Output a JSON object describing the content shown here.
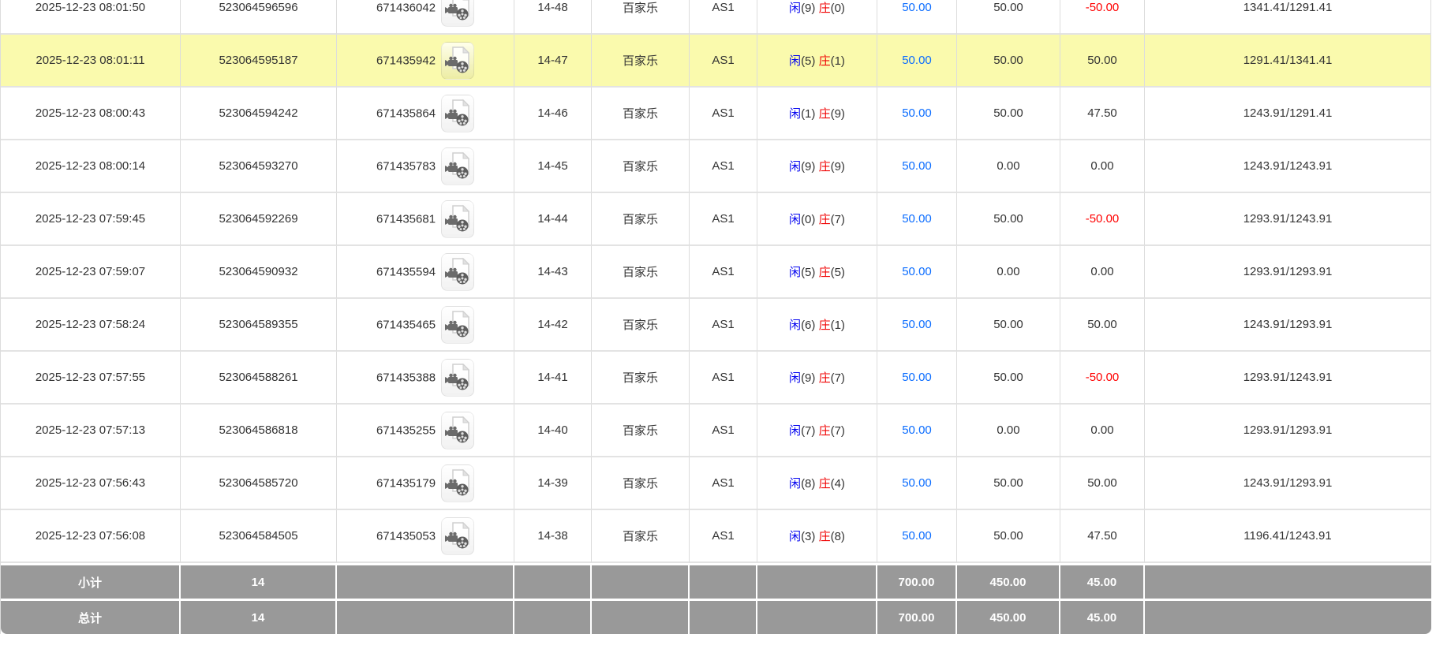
{
  "colors": {
    "highlight_row": "#fafaad",
    "player_blue": "#0404f0",
    "banker_red": "#f00505",
    "amount_link_blue": "#0a6cff",
    "loss_red": "#ff0000",
    "summary_bg": "#999999",
    "row_border": "#e3e3e3"
  },
  "table": {
    "icon": "video-record-icon",
    "rows": [
      {
        "time": "2025-12-23 08:01:50",
        "bet_id": "523064596596",
        "game_id": "671436042",
        "round": "14-48",
        "game_name": "百家乐",
        "table_name": "AS1",
        "player_label": "闲",
        "player_value": "(9)",
        "banker_label": "庄",
        "banker_value": "(0)",
        "bet_amount": "50.00",
        "valid_amount": "50.00",
        "win_loss": "-50.00",
        "balance": "1341.41/1291.41",
        "highlighted": false
      },
      {
        "time": "2025-12-23 08:01:11",
        "bet_id": "523064595187",
        "game_id": "671435942",
        "round": "14-47",
        "game_name": "百家乐",
        "table_name": "AS1",
        "player_label": "闲",
        "player_value": "(5)",
        "banker_label": "庄",
        "banker_value": "(1)",
        "bet_amount": "50.00",
        "valid_amount": "50.00",
        "win_loss": "50.00",
        "balance": "1291.41/1341.41",
        "highlighted": true
      },
      {
        "time": "2025-12-23 08:00:43",
        "bet_id": "523064594242",
        "game_id": "671435864",
        "round": "14-46",
        "game_name": "百家乐",
        "table_name": "AS1",
        "player_label": "闲",
        "player_value": "(1)",
        "banker_label": "庄",
        "banker_value": "(9)",
        "bet_amount": "50.00",
        "valid_amount": "50.00",
        "win_loss": "47.50",
        "balance": "1243.91/1291.41",
        "highlighted": false
      },
      {
        "time": "2025-12-23 08:00:14",
        "bet_id": "523064593270",
        "game_id": "671435783",
        "round": "14-45",
        "game_name": "百家乐",
        "table_name": "AS1",
        "player_label": "闲",
        "player_value": "(9)",
        "banker_label": "庄",
        "banker_value": "(9)",
        "bet_amount": "50.00",
        "valid_amount": "0.00",
        "win_loss": "0.00",
        "balance": "1243.91/1243.91",
        "highlighted": false
      },
      {
        "time": "2025-12-23 07:59:45",
        "bet_id": "523064592269",
        "game_id": "671435681",
        "round": "14-44",
        "game_name": "百家乐",
        "table_name": "AS1",
        "player_label": "闲",
        "player_value": "(0)",
        "banker_label": "庄",
        "banker_value": "(7)",
        "bet_amount": "50.00",
        "valid_amount": "50.00",
        "win_loss": "-50.00",
        "balance": "1293.91/1243.91",
        "highlighted": false
      },
      {
        "time": "2025-12-23 07:59:07",
        "bet_id": "523064590932",
        "game_id": "671435594",
        "round": "14-43",
        "game_name": "百家乐",
        "table_name": "AS1",
        "player_label": "闲",
        "player_value": "(5)",
        "banker_label": "庄",
        "banker_value": "(5)",
        "bet_amount": "50.00",
        "valid_amount": "0.00",
        "win_loss": "0.00",
        "balance": "1293.91/1293.91",
        "highlighted": false
      },
      {
        "time": "2025-12-23 07:58:24",
        "bet_id": "523064589355",
        "game_id": "671435465",
        "round": "14-42",
        "game_name": "百家乐",
        "table_name": "AS1",
        "player_label": "闲",
        "player_value": "(6)",
        "banker_label": "庄",
        "banker_value": "(1)",
        "bet_amount": "50.00",
        "valid_amount": "50.00",
        "win_loss": "50.00",
        "balance": "1243.91/1293.91",
        "highlighted": false
      },
      {
        "time": "2025-12-23 07:57:55",
        "bet_id": "523064588261",
        "game_id": "671435388",
        "round": "14-41",
        "game_name": "百家乐",
        "table_name": "AS1",
        "player_label": "闲",
        "player_value": "(9)",
        "banker_label": "庄",
        "banker_value": "(7)",
        "bet_amount": "50.00",
        "valid_amount": "50.00",
        "win_loss": "-50.00",
        "balance": "1293.91/1243.91",
        "highlighted": false
      },
      {
        "time": "2025-12-23 07:57:13",
        "bet_id": "523064586818",
        "game_id": "671435255",
        "round": "14-40",
        "game_name": "百家乐",
        "table_name": "AS1",
        "player_label": "闲",
        "player_value": "(7)",
        "banker_label": "庄",
        "banker_value": "(7)",
        "bet_amount": "50.00",
        "valid_amount": "0.00",
        "win_loss": "0.00",
        "balance": "1293.91/1293.91",
        "highlighted": false
      },
      {
        "time": "2025-12-23 07:56:43",
        "bet_id": "523064585720",
        "game_id": "671435179",
        "round": "14-39",
        "game_name": "百家乐",
        "table_name": "AS1",
        "player_label": "闲",
        "player_value": "(8)",
        "banker_label": "庄",
        "banker_value": "(4)",
        "bet_amount": "50.00",
        "valid_amount": "50.00",
        "win_loss": "50.00",
        "balance": "1243.91/1293.91",
        "highlighted": false
      },
      {
        "time": "2025-12-23 07:56:08",
        "bet_id": "523064584505",
        "game_id": "671435053",
        "round": "14-38",
        "game_name": "百家乐",
        "table_name": "AS1",
        "player_label": "闲",
        "player_value": "(3)",
        "banker_label": "庄",
        "banker_value": "(8)",
        "bet_amount": "50.00",
        "valid_amount": "50.00",
        "win_loss": "47.50",
        "balance": "1196.41/1243.91",
        "highlighted": false
      }
    ],
    "summary_rows": [
      {
        "label": "小计",
        "count": "14",
        "bet_total": "700.00",
        "valid_total": "450.00",
        "win_loss_total": "45.00"
      },
      {
        "label": "总计",
        "count": "14",
        "bet_total": "700.00",
        "valid_total": "450.00",
        "win_loss_total": "45.00"
      }
    ]
  }
}
